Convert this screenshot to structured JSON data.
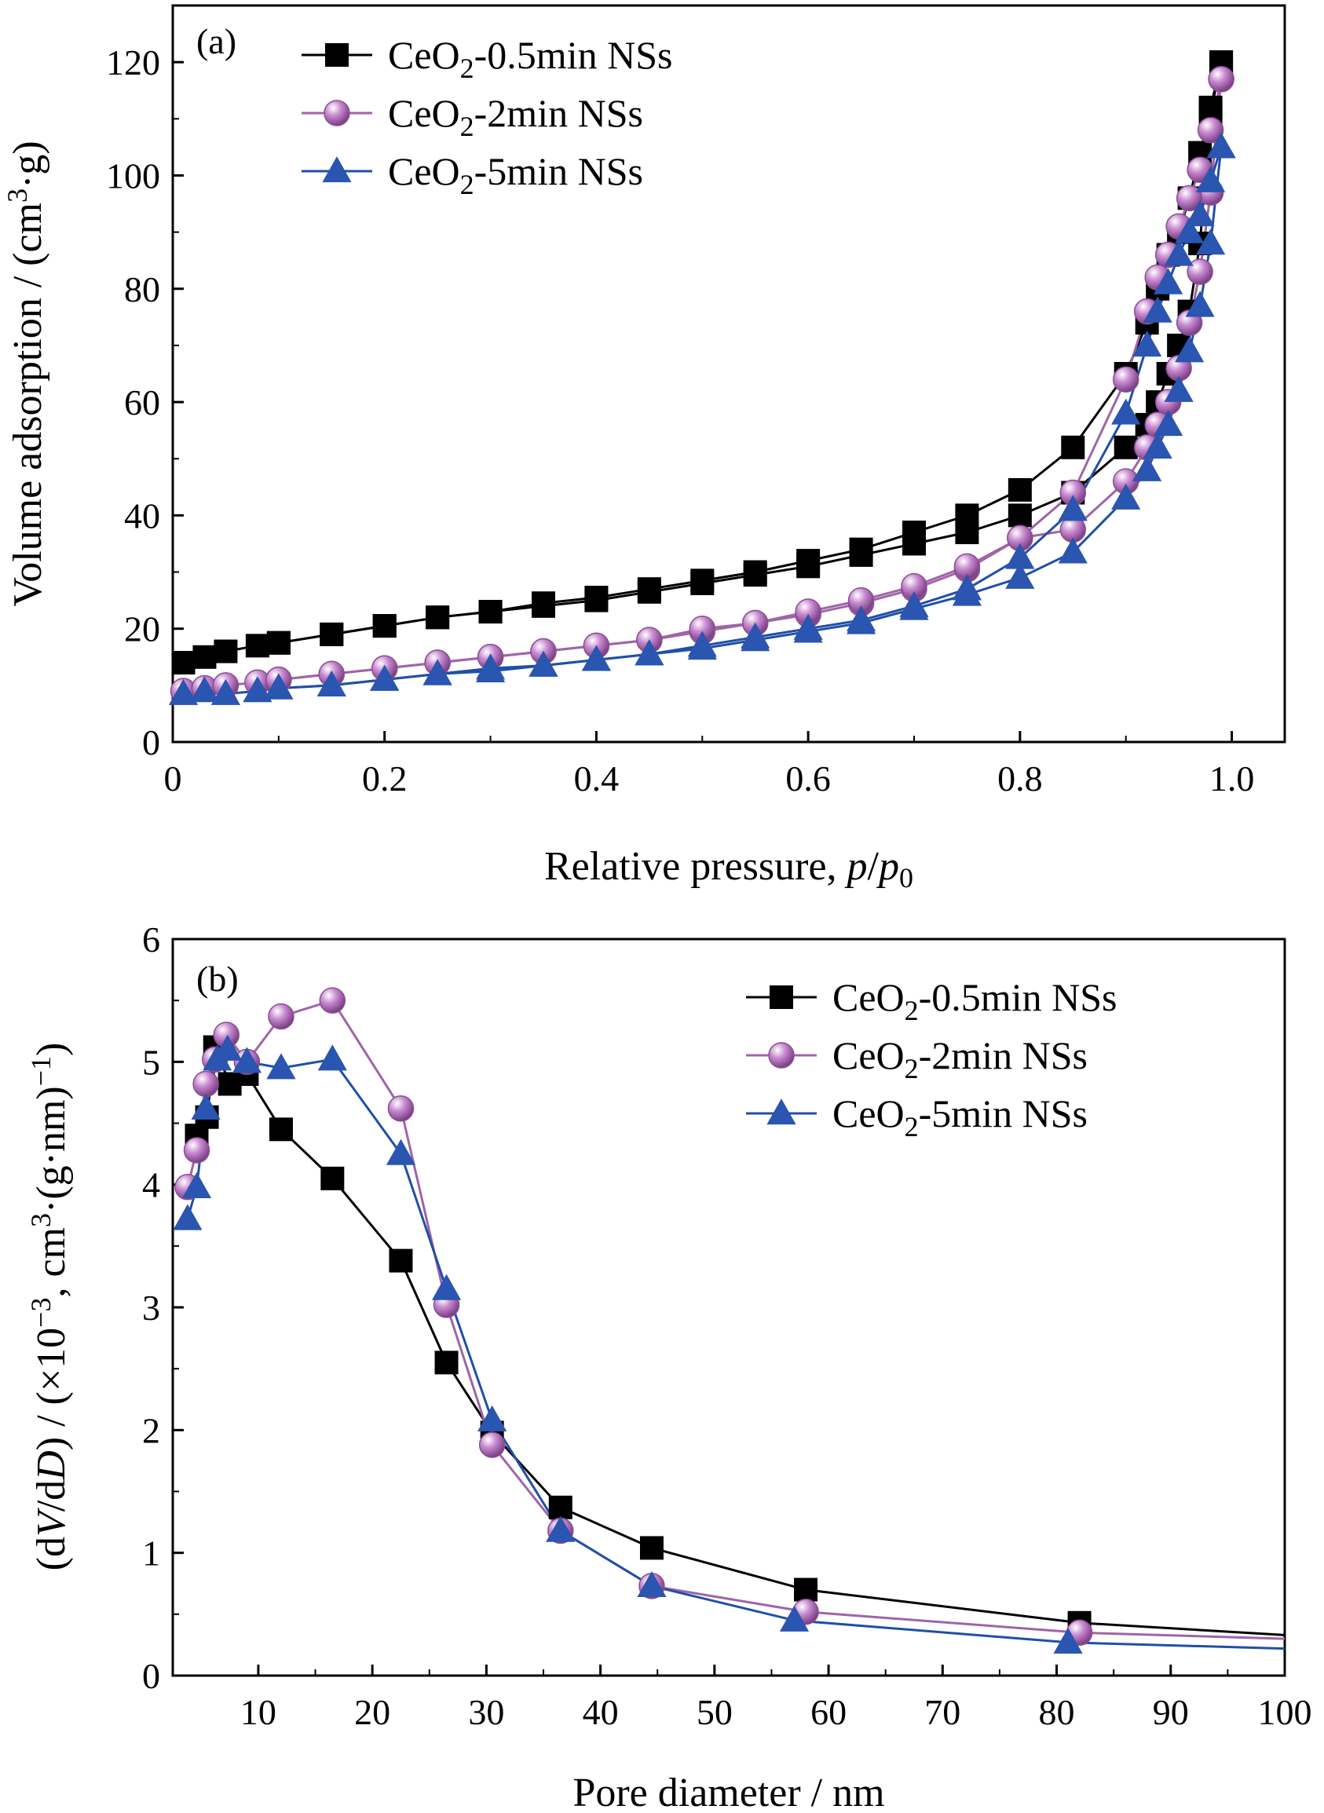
{
  "panels": [
    {
      "panel_label": "(a)",
      "xlabel_main": "Relative pressure, ",
      "xlabel_italic_1": "p",
      "xlabel_slash": "/",
      "xlabel_italic_2": "p",
      "xlabel_sub": "0",
      "ylabel_part1": "Volume adsorption / (cm",
      "ylabel_sup": "3",
      "ylabel_part2": "·g)"
    },
    {
      "panel_label": "(b)",
      "xlabel": "Pore diameter / nm",
      "ylabel_p1": "(d",
      "ylabel_V": "V",
      "ylabel_p2": "/d",
      "ylabel_D": "D",
      "ylabel_p3": ") / (×10",
      "ylabel_sup1": "−3",
      "ylabel_p4": ", cm",
      "ylabel_sup2": "3",
      "ylabel_p5": "·(g·nm)",
      "ylabel_sup3": "−1",
      "ylabel_p6": ")"
    }
  ],
  "legend_names": [
    {
      "prefix": "CeO",
      "sub": "2",
      "suffix": "-0.5min NSs"
    },
    {
      "prefix": "CeO",
      "sub": "2",
      "suffix": "-2min NSs"
    },
    {
      "prefix": "CeO",
      "sub": "2",
      "suffix": "-5min NSs"
    }
  ],
  "colors": {
    "series_0.5min": "#000000",
    "series_2min": "#a064a8",
    "series_5min": "#1f4fa8",
    "marker_0.5min": "#000000",
    "marker_2min": "#c889d0",
    "marker_5min": "#2a55b0"
  },
  "chart_data": [
    {
      "type": "line",
      "title": "",
      "xlabel": "Relative pressure, p/p0",
      "ylabel": "Volume adsorption / (cm3·g)",
      "xlim": [
        0,
        1.05
      ],
      "ylim": [
        0,
        130
      ],
      "xticks": [
        0,
        0.2,
        0.4,
        0.6,
        0.8,
        1.0
      ],
      "xtick_labels": [
        "0",
        "0.2",
        "0.4",
        "0.6",
        "0.8",
        "1.0"
      ],
      "yticks": [
        0,
        20,
        40,
        60,
        80,
        100,
        120
      ],
      "ytick_labels": [
        "0",
        "20",
        "40",
        "60",
        "80",
        "100",
        "120"
      ],
      "legend_position": "top-center",
      "series": [
        {
          "name": "CeO2-0.5min NSs",
          "marker": "square",
          "adsorption": [
            [
              0.01,
              14
            ],
            [
              0.03,
              15
            ],
            [
              0.05,
              16
            ],
            [
              0.08,
              17
            ],
            [
              0.1,
              17.5
            ],
            [
              0.15,
              19
            ],
            [
              0.2,
              20.5
            ],
            [
              0.25,
              22
            ],
            [
              0.3,
              23
            ],
            [
              0.35,
              24
            ],
            [
              0.4,
              25
            ],
            [
              0.45,
              26.5
            ],
            [
              0.5,
              28
            ],
            [
              0.55,
              29.5
            ],
            [
              0.6,
              31
            ],
            [
              0.65,
              33
            ],
            [
              0.7,
              35
            ],
            [
              0.75,
              37
            ],
            [
              0.8,
              40
            ],
            [
              0.85,
              44
            ],
            [
              0.9,
              52
            ],
            [
              0.92,
              56
            ],
            [
              0.93,
              60
            ],
            [
              0.94,
              65
            ],
            [
              0.95,
              70
            ],
            [
              0.96,
              76
            ],
            [
              0.97,
              88
            ],
            [
              0.98,
              112
            ],
            [
              0.99,
              120
            ]
          ],
          "desorption": [
            [
              0.99,
              120
            ],
            [
              0.98,
              111
            ],
            [
              0.97,
              104
            ],
            [
              0.96,
              96
            ],
            [
              0.95,
              90
            ],
            [
              0.94,
              86
            ],
            [
              0.93,
              80
            ],
            [
              0.92,
              74
            ],
            [
              0.9,
              65
            ],
            [
              0.85,
              52
            ],
            [
              0.8,
              44.5
            ],
            [
              0.75,
              40
            ],
            [
              0.7,
              37
            ],
            [
              0.65,
              34
            ],
            [
              0.6,
              32
            ],
            [
              0.55,
              30
            ],
            [
              0.5,
              28.5
            ],
            [
              0.45,
              27
            ],
            [
              0.4,
              25.5
            ],
            [
              0.35,
              24.5
            ],
            [
              0.3,
              23
            ],
            [
              0.25,
              22
            ],
            [
              0.2,
              20.5
            ],
            [
              0.15,
              19
            ],
            [
              0.1,
              17.5
            ]
          ]
        },
        {
          "name": "CeO2-2min NSs",
          "marker": "sphere",
          "adsorption": [
            [
              0.01,
              9
            ],
            [
              0.03,
              9.5
            ],
            [
              0.05,
              10
            ],
            [
              0.08,
              10.5
            ],
            [
              0.1,
              11
            ],
            [
              0.15,
              12
            ],
            [
              0.2,
              13
            ],
            [
              0.25,
              14
            ],
            [
              0.3,
              15
            ],
            [
              0.35,
              16
            ],
            [
              0.4,
              17
            ],
            [
              0.45,
              18
            ],
            [
              0.5,
              19.5
            ],
            [
              0.55,
              21
            ],
            [
              0.6,
              22.5
            ],
            [
              0.65,
              24.5
            ],
            [
              0.7,
              27
            ],
            [
              0.75,
              30.5
            ],
            [
              0.8,
              36
            ],
            [
              0.85,
              37.5
            ],
            [
              0.9,
              46
            ],
            [
              0.92,
              52
            ],
            [
              0.93,
              56
            ],
            [
              0.94,
              60
            ],
            [
              0.95,
              66
            ],
            [
              0.96,
              74
            ],
            [
              0.97,
              83
            ],
            [
              0.98,
              97
            ],
            [
              0.99,
              117
            ]
          ],
          "desorption": [
            [
              0.99,
              117
            ],
            [
              0.98,
              108
            ],
            [
              0.97,
              101
            ],
            [
              0.96,
              96
            ],
            [
              0.95,
              91
            ],
            [
              0.94,
              86
            ],
            [
              0.93,
              82
            ],
            [
              0.92,
              76
            ],
            [
              0.9,
              64
            ],
            [
              0.85,
              44
            ],
            [
              0.8,
              36
            ],
            [
              0.75,
              31
            ],
            [
              0.7,
              27.5
            ],
            [
              0.65,
              25
            ],
            [
              0.6,
              23
            ],
            [
              0.55,
              21
            ],
            [
              0.5,
              20
            ],
            [
              0.45,
              18
            ],
            [
              0.4,
              17
            ],
            [
              0.35,
              16
            ],
            [
              0.3,
              15
            ],
            [
              0.25,
              14
            ],
            [
              0.2,
              13
            ],
            [
              0.15,
              12
            ],
            [
              0.1,
              11
            ]
          ]
        },
        {
          "name": "CeO2-5min NSs",
          "marker": "triangle",
          "adsorption": [
            [
              0.01,
              8.5
            ],
            [
              0.03,
              9
            ],
            [
              0.05,
              8.5
            ],
            [
              0.08,
              9
            ],
            [
              0.1,
              9.5
            ],
            [
              0.15,
              10
            ],
            [
              0.2,
              11
            ],
            [
              0.25,
              12
            ],
            [
              0.3,
              13
            ],
            [
              0.35,
              13.5
            ],
            [
              0.4,
              14.5
            ],
            [
              0.45,
              15.5
            ],
            [
              0.5,
              16.5
            ],
            [
              0.55,
              18
            ],
            [
              0.6,
              19.5
            ],
            [
              0.65,
              21
            ],
            [
              0.7,
              23.5
            ],
            [
              0.75,
              26
            ],
            [
              0.8,
              29
            ],
            [
              0.85,
              33.5
            ],
            [
              0.9,
              43
            ],
            [
              0.92,
              48
            ],
            [
              0.93,
              52
            ],
            [
              0.94,
              56
            ],
            [
              0.95,
              62
            ],
            [
              0.96,
              69
            ],
            [
              0.97,
              77
            ],
            [
              0.98,
              88
            ],
            [
              0.99,
              105
            ]
          ],
          "desorption": [
            [
              0.99,
              105
            ],
            [
              0.98,
              99
            ],
            [
              0.97,
              93
            ],
            [
              0.96,
              90
            ],
            [
              0.95,
              86
            ],
            [
              0.94,
              81
            ],
            [
              0.93,
              76
            ],
            [
              0.92,
              70
            ],
            [
              0.9,
              58
            ],
            [
              0.85,
              41
            ],
            [
              0.8,
              32.5
            ],
            [
              0.75,
              27
            ],
            [
              0.7,
              24
            ],
            [
              0.65,
              21.5
            ],
            [
              0.6,
              20
            ],
            [
              0.55,
              18.5
            ],
            [
              0.5,
              17
            ],
            [
              0.45,
              15.5
            ],
            [
              0.4,
              14.5
            ],
            [
              0.35,
              13.5
            ],
            [
              0.3,
              12.5
            ],
            [
              0.25,
              12
            ],
            [
              0.2,
              11
            ],
            [
              0.15,
              10
            ],
            [
              0.1,
              9.5
            ]
          ]
        }
      ]
    },
    {
      "type": "line",
      "title": "",
      "xlabel": "Pore diameter / nm",
      "ylabel": "(dV/dD) / (×10−3, cm3·(g·nm)−1)",
      "xlim": [
        2.5,
        100
      ],
      "ylim": [
        0,
        6
      ],
      "xticks": [
        10,
        20,
        30,
        40,
        50,
        60,
        70,
        80,
        90,
        100
      ],
      "xtick_labels": [
        "10",
        "20",
        "30",
        "40",
        "50",
        "60",
        "70",
        "80",
        "90",
        "100"
      ],
      "yticks": [
        0,
        1,
        2,
        3,
        4,
        5,
        6
      ],
      "ytick_labels": [
        "0",
        "1",
        "2",
        "3",
        "4",
        "5",
        "6"
      ],
      "legend_position": "top-right",
      "series": [
        {
          "name": "CeO2-0.5min NSs",
          "marker": "square",
          "points": [
            [
              4.6,
              4.4
            ],
            [
              5.5,
              4.55
            ],
            [
              6.2,
              5.12
            ],
            [
              7.5,
              4.82
            ],
            [
              9,
              4.9
            ],
            [
              12,
              4.45
            ],
            [
              16.5,
              4.05
            ],
            [
              22.5,
              3.38
            ],
            [
              26.5,
              2.55
            ],
            [
              30.5,
              1.98
            ],
            [
              36.5,
              1.37
            ],
            [
              44.5,
              1.04
            ],
            [
              58,
              0.7
            ],
            [
              82,
              0.43
            ],
            [
              100,
              0.33
            ]
          ]
        },
        {
          "name": "CeO2-2min NSs",
          "marker": "sphere",
          "points": [
            [
              3.8,
              3.98
            ],
            [
              4.6,
              4.28
            ],
            [
              5.4,
              4.82
            ],
            [
              6.2,
              5.02
            ],
            [
              7.2,
              5.22
            ],
            [
              9,
              5.0
            ],
            [
              12,
              5.37
            ],
            [
              16.5,
              5.5
            ],
            [
              22.5,
              4.62
            ],
            [
              26.5,
              3.02
            ],
            [
              30.5,
              1.88
            ],
            [
              36.5,
              1.18
            ],
            [
              44.5,
              0.73
            ],
            [
              58,
              0.52
            ],
            [
              82,
              0.35
            ],
            [
              100,
              0.3
            ]
          ]
        },
        {
          "name": "CeO2-5min NSs",
          "marker": "triangle",
          "points": [
            [
              3.8,
              3.72
            ],
            [
              4.6,
              3.98
            ],
            [
              5.4,
              4.62
            ],
            [
              6.4,
              5.02
            ],
            [
              7.3,
              5.1
            ],
            [
              9,
              5.0
            ],
            [
              12,
              4.95
            ],
            [
              16.5,
              5.02
            ],
            [
              22.5,
              4.25
            ],
            [
              26.5,
              3.15
            ],
            [
              30.5,
              2.08
            ],
            [
              36.5,
              1.18
            ],
            [
              44.5,
              0.73
            ],
            [
              57,
              0.45
            ],
            [
              81,
              0.27
            ],
            [
              100,
              0.22
            ]
          ]
        }
      ]
    }
  ]
}
